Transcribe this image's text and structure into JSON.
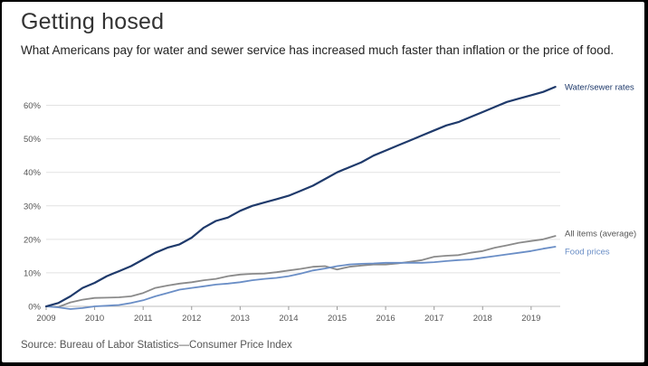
{
  "header": {
    "title": "Getting hosed",
    "subtitle": "What Americans pay for water and sewer service has increased much faster than inflation or the price of food."
  },
  "footer": {
    "source": "Source: Bureau of Labor Statistics—Consumer Price Index"
  },
  "colors": {
    "water": "#1f3a6b",
    "all_items": "#8a8a8a",
    "food": "#6a8ec6",
    "grid": "#e2e2e2"
  },
  "chart_data": {
    "type": "line",
    "title": "",
    "xlabel": "",
    "ylabel": "",
    "xlim": [
      2009,
      2019.6
    ],
    "ylim": [
      0,
      0.65
    ],
    "y_ticks": [
      0,
      0.1,
      0.2,
      0.3,
      0.4,
      0.5,
      0.6
    ],
    "y_tick_labels": [
      "0%",
      "10%",
      "20%",
      "30%",
      "40%",
      "50%",
      "60%"
    ],
    "x_ticks": [
      2009,
      2010,
      2011,
      2012,
      2013,
      2014,
      2015,
      2016,
      2017,
      2018,
      2019
    ],
    "x_tick_labels": [
      "2009",
      "2010",
      "2011",
      "2012",
      "2013",
      "2014",
      "2015",
      "2016",
      "2017",
      "2018",
      "2019"
    ],
    "grid": "horizontal",
    "series": [
      {
        "name": "Water/sewer rates",
        "color_key": "water",
        "x": [
          2009,
          2009.25,
          2009.5,
          2009.75,
          2010,
          2010.25,
          2010.5,
          2010.75,
          2011,
          2011.25,
          2011.5,
          2011.75,
          2012,
          2012.25,
          2012.5,
          2012.75,
          2013,
          2013.25,
          2013.5,
          2013.75,
          2014,
          2014.25,
          2014.5,
          2014.75,
          2015,
          2015.25,
          2015.5,
          2015.75,
          2016,
          2016.25,
          2016.5,
          2016.75,
          2017,
          2017.25,
          2017.5,
          2017.75,
          2018,
          2018.25,
          2018.5,
          2018.75,
          2019,
          2019.25,
          2019.5
        ],
        "values": [
          0,
          0.01,
          0.03,
          0.055,
          0.07,
          0.09,
          0.105,
          0.12,
          0.14,
          0.16,
          0.175,
          0.185,
          0.205,
          0.235,
          0.255,
          0.265,
          0.285,
          0.3,
          0.31,
          0.32,
          0.33,
          0.345,
          0.36,
          0.38,
          0.4,
          0.415,
          0.43,
          0.45,
          0.465,
          0.48,
          0.495,
          0.51,
          0.525,
          0.54,
          0.55,
          0.565,
          0.58,
          0.595,
          0.61,
          0.62,
          0.63,
          0.64,
          0.655
        ]
      },
      {
        "name": "All items (average)",
        "color_key": "all_items",
        "x": [
          2009,
          2009.25,
          2009.5,
          2009.75,
          2010,
          2010.25,
          2010.5,
          2010.75,
          2011,
          2011.25,
          2011.5,
          2011.75,
          2012,
          2012.25,
          2012.5,
          2012.75,
          2013,
          2013.25,
          2013.5,
          2013.75,
          2014,
          2014.25,
          2014.5,
          2014.75,
          2015,
          2015.25,
          2015.5,
          2015.75,
          2016,
          2016.25,
          2016.5,
          2016.75,
          2017,
          2017.25,
          2017.5,
          2017.75,
          2018,
          2018.25,
          2018.5,
          2018.75,
          2019,
          2019.25,
          2019.5
        ],
        "values": [
          0,
          -0.002,
          0.012,
          0.02,
          0.025,
          0.026,
          0.027,
          0.03,
          0.04,
          0.055,
          0.062,
          0.068,
          0.072,
          0.078,
          0.082,
          0.09,
          0.095,
          0.097,
          0.098,
          0.102,
          0.107,
          0.112,
          0.118,
          0.12,
          0.11,
          0.118,
          0.122,
          0.125,
          0.125,
          0.128,
          0.133,
          0.138,
          0.148,
          0.151,
          0.153,
          0.16,
          0.165,
          0.175,
          0.182,
          0.19,
          0.195,
          0.2,
          0.21
        ]
      },
      {
        "name": "Food prices",
        "color_key": "food",
        "x": [
          2009,
          2009.25,
          2009.5,
          2009.75,
          2010,
          2010.25,
          2010.5,
          2010.75,
          2011,
          2011.25,
          2011.5,
          2011.75,
          2012,
          2012.25,
          2012.5,
          2012.75,
          2013,
          2013.25,
          2013.5,
          2013.75,
          2014,
          2014.25,
          2014.5,
          2014.75,
          2015,
          2015.25,
          2015.5,
          2015.75,
          2016,
          2016.25,
          2016.5,
          2016.75,
          2017,
          2017.25,
          2017.5,
          2017.75,
          2018,
          2018.25,
          2018.5,
          2018.75,
          2019,
          2019.25,
          2019.5
        ],
        "values": [
          0,
          -0.003,
          -0.008,
          -0.005,
          0,
          0.002,
          0.004,
          0.01,
          0.018,
          0.03,
          0.04,
          0.05,
          0.055,
          0.06,
          0.065,
          0.068,
          0.072,
          0.078,
          0.082,
          0.085,
          0.09,
          0.098,
          0.107,
          0.113,
          0.12,
          0.125,
          0.127,
          0.128,
          0.13,
          0.13,
          0.13,
          0.13,
          0.132,
          0.135,
          0.138,
          0.14,
          0.145,
          0.15,
          0.155,
          0.16,
          0.165,
          0.172,
          0.178
        ]
      }
    ]
  }
}
